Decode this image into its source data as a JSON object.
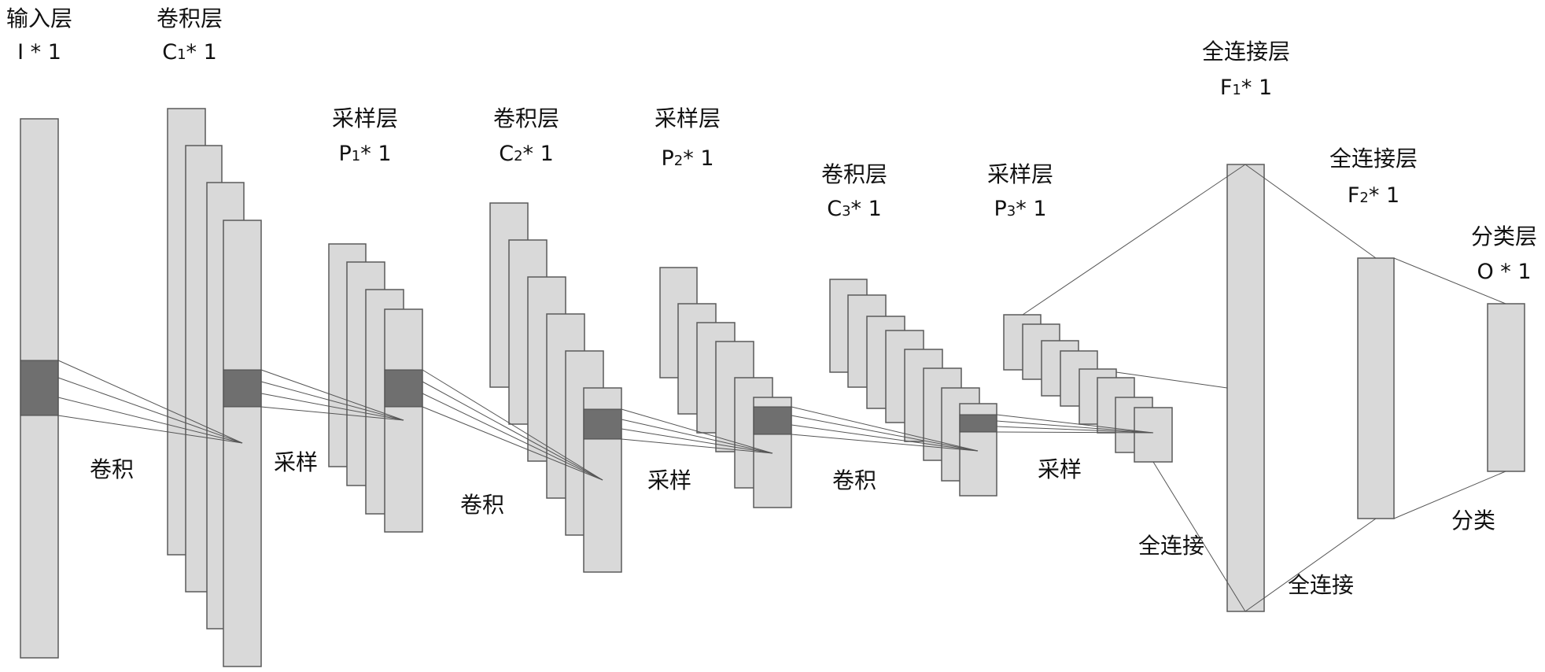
{
  "layers": [
    {
      "title": "输入层",
      "symbol": "I",
      "sub": "",
      "suffix": " * 1"
    },
    {
      "title": "卷积层",
      "symbol": "C",
      "sub": "1",
      "suffix": "* 1"
    },
    {
      "title": "采样层",
      "symbol": "P",
      "sub": "1",
      "suffix": "* 1"
    },
    {
      "title": "卷积层",
      "symbol": "C",
      "sub": "2",
      "suffix": "* 1"
    },
    {
      "title": "采样层",
      "symbol": "P",
      "sub": "2",
      "suffix": "* 1"
    },
    {
      "title": "卷积层",
      "symbol": "C",
      "sub": "3",
      "suffix": "* 1"
    },
    {
      "title": "采样层",
      "symbol": "P",
      "sub": "3",
      "suffix": "* 1"
    },
    {
      "title": "全连接层",
      "symbol": "F",
      "sub": "1",
      "suffix": "* 1"
    },
    {
      "title": "全连接层",
      "symbol": "F",
      "sub": "2",
      "suffix": "* 1"
    },
    {
      "title": "分类层",
      "symbol": "O",
      "sub": "",
      "suffix": " * 1"
    }
  ],
  "operations": [
    "卷积",
    "采样",
    "卷积",
    "采样",
    "卷积",
    "采样",
    "全连接",
    "全连接",
    "分类"
  ],
  "colors": {
    "map_fill": "#d9d9d9",
    "map_stroke": "#5a5a5a",
    "window_fill": "#6f6f6f",
    "line": "#555555"
  }
}
